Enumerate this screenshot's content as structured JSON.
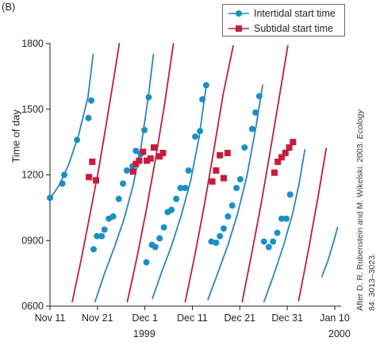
{
  "panel_label": "(B)",
  "credit": {
    "line1_pre": "After D. R. Rubenstein and M. Wikelski. 2003. ",
    "line1_em": "Ecology",
    "line2": "84: 3013–3023."
  },
  "colors": {
    "intertidal": "#1b8fc4",
    "subtidal": "#c91b3c",
    "curve_blue": "#2a86b5",
    "curve_red": "#b81f3f",
    "axis": "#231f20"
  },
  "chart_data": {
    "type": "scatter",
    "ylabel": "Time of day",
    "x_tick_labels": [
      "Nov 11",
      "Nov 21",
      "Dec 1",
      "Dec 11",
      "Dec 21",
      "Dec 31",
      "Jan 10"
    ],
    "x_ticks_day": [
      0,
      10,
      20,
      30,
      40,
      50,
      60
    ],
    "x_year_labels": [
      "1999",
      "2000"
    ],
    "xlim": [
      0,
      60
    ],
    "y_tick_labels": [
      "0600",
      "0900",
      "1200",
      "1500",
      "1800"
    ],
    "y_ticks_hours": [
      6,
      9,
      12,
      15,
      18
    ],
    "ylim": [
      6,
      18
    ],
    "legend_position": "top-right",
    "series": [
      {
        "name": "Intertidal start time",
        "marker": "circle",
        "points": [
          [
            0,
            10.95
          ],
          [
            2.6,
            11.6
          ],
          [
            3.0,
            12.0
          ],
          [
            5.7,
            13.6
          ],
          [
            8.1,
            14.6
          ],
          [
            8.7,
            15.4
          ],
          [
            9.2,
            8.6
          ],
          [
            9.9,
            9.2
          ],
          [
            10.9,
            9.2
          ],
          [
            11.5,
            9.5
          ],
          [
            12.4,
            10.0
          ],
          [
            13.3,
            10.1
          ],
          [
            14.5,
            10.9
          ],
          [
            15.4,
            11.6
          ],
          [
            16.2,
            12.2
          ],
          [
            17.4,
            12.4
          ],
          [
            18.1,
            13.1
          ],
          [
            19.1,
            12.95
          ],
          [
            19.9,
            14.05
          ],
          [
            20.3,
            8.0
          ],
          [
            20.8,
            15.55
          ],
          [
            21.5,
            8.8
          ],
          [
            22.2,
            8.7
          ],
          [
            23.1,
            9.1
          ],
          [
            24.0,
            9.6
          ],
          [
            24.8,
            10.3
          ],
          [
            25.6,
            10.4
          ],
          [
            26.6,
            10.9
          ],
          [
            27.5,
            11.4
          ],
          [
            28.5,
            11.4
          ],
          [
            29.2,
            12.2
          ],
          [
            30.6,
            13.75
          ],
          [
            31.6,
            14.0
          ],
          [
            32.1,
            15.45
          ],
          [
            32.9,
            16.1
          ],
          [
            34.0,
            8.95
          ],
          [
            35.0,
            8.9
          ],
          [
            35.8,
            9.2
          ],
          [
            36.6,
            9.55
          ],
          [
            37.5,
            10.1
          ],
          [
            38.4,
            10.6
          ],
          [
            39.3,
            11.4
          ],
          [
            40.1,
            11.8
          ],
          [
            41.0,
            13.25
          ],
          [
            42.6,
            14.1
          ],
          [
            43.3,
            14.85
          ],
          [
            44.1,
            15.6
          ],
          [
            45.1,
            8.95
          ],
          [
            46.1,
            8.7
          ],
          [
            47.0,
            8.95
          ],
          [
            47.9,
            9.35
          ],
          [
            48.8,
            10.0
          ],
          [
            49.8,
            10.0
          ],
          [
            50.6,
            11.1
          ]
        ]
      },
      {
        "name": "Subtidal start time",
        "marker": "square",
        "points": [
          [
            8.2,
            11.9
          ],
          [
            8.9,
            12.6
          ],
          [
            9.7,
            11.75
          ],
          [
            17.5,
            12.15
          ],
          [
            18.1,
            12.5
          ],
          [
            18.8,
            12.65
          ],
          [
            19.6,
            13.05
          ],
          [
            20.4,
            12.65
          ],
          [
            21.2,
            12.75
          ],
          [
            21.9,
            13.25
          ],
          [
            23.1,
            12.85
          ],
          [
            23.8,
            13.0
          ],
          [
            34.2,
            11.7
          ],
          [
            35.0,
            12.2
          ],
          [
            35.8,
            12.9
          ],
          [
            36.6,
            11.85
          ],
          [
            37.4,
            13.0
          ],
          [
            47.3,
            12.1
          ],
          [
            48.0,
            12.6
          ],
          [
            48.8,
            12.8
          ],
          [
            49.6,
            13.0
          ],
          [
            50.4,
            13.25
          ],
          [
            51.2,
            13.5
          ]
        ]
      }
    ],
    "curves": [
      {
        "name": "Intertidal start time",
        "points": [
          [
            0,
            10.9
          ],
          [
            2,
            11.55
          ],
          [
            4,
            12.5
          ],
          [
            6,
            13.8
          ],
          [
            8.0,
            15.55
          ],
          [
            9.1,
            17.5
          ]
        ]
      },
      {
        "name": "Intertidal start time",
        "points": [
          [
            9.5,
            6.2
          ],
          [
            11.5,
            7.5
          ],
          [
            13.5,
            8.65
          ],
          [
            15.5,
            9.9
          ],
          [
            17.5,
            11.5
          ],
          [
            19.2,
            13.3
          ],
          [
            20.7,
            15.55
          ],
          [
            21.8,
            17.5
          ]
        ]
      },
      {
        "name": "Intertidal start time",
        "points": [
          [
            21.6,
            6.35
          ],
          [
            23.6,
            7.6
          ],
          [
            25.6,
            8.75
          ],
          [
            27.6,
            10.1
          ],
          [
            29.6,
            11.7
          ],
          [
            31.4,
            13.7
          ],
          [
            32.9,
            16.05
          ]
        ]
      },
      {
        "name": "Intertidal start time",
        "points": [
          [
            33.3,
            6.3
          ],
          [
            35.5,
            7.6
          ],
          [
            37.5,
            8.8
          ],
          [
            39.5,
            10.2
          ],
          [
            41.5,
            11.95
          ],
          [
            43.4,
            14.2
          ],
          [
            44.8,
            16.1
          ]
        ]
      },
      {
        "name": "Intertidal start time",
        "points": [
          [
            45.1,
            6.2
          ],
          [
            47.1,
            7.4
          ],
          [
            49.1,
            8.7
          ],
          [
            51.1,
            10.2
          ],
          [
            52.5,
            11.6
          ],
          [
            53.7,
            13.15
          ]
        ]
      },
      {
        "name": "Intertidal start time",
        "points": [
          [
            57.3,
            7.35
          ],
          [
            58.6,
            8.1
          ],
          [
            59.7,
            8.9
          ],
          [
            60.6,
            9.6
          ]
        ]
      },
      {
        "name": "Subtidal start time",
        "points": [
          [
            4.7,
            6.2
          ],
          [
            6.5,
            8.05
          ],
          [
            8.3,
            10.05
          ],
          [
            10.3,
            12.3
          ],
          [
            12.0,
            14.5
          ],
          [
            13.5,
            16.5
          ],
          [
            14.6,
            18.0
          ]
        ]
      },
      {
        "name": "Subtidal start time",
        "points": [
          [
            16.3,
            6.2
          ],
          [
            18.3,
            8.2
          ],
          [
            20.3,
            10.4
          ],
          [
            22.3,
            12.8
          ],
          [
            24.2,
            15.3
          ],
          [
            26.0,
            18.0
          ]
        ]
      },
      {
        "name": "Subtidal start time",
        "points": [
          [
            28.5,
            6.2
          ],
          [
            30.5,
            8.3
          ],
          [
            32.5,
            10.6
          ],
          [
            34.5,
            13.1
          ],
          [
            36.5,
            15.7
          ],
          [
            38.6,
            17.9
          ]
        ]
      },
      {
        "name": "Subtidal start time",
        "points": [
          [
            40.5,
            6.2
          ],
          [
            42.5,
            8.4
          ],
          [
            44.5,
            10.7
          ],
          [
            46.5,
            13.2
          ],
          [
            48.5,
            15.8
          ],
          [
            50.1,
            17.9
          ]
        ]
      },
      {
        "name": "Subtidal start time",
        "points": [
          [
            52.4,
            6.25
          ],
          [
            54.4,
            8.5
          ],
          [
            56.4,
            10.9
          ],
          [
            58.2,
            13.2
          ]
        ]
      }
    ]
  }
}
